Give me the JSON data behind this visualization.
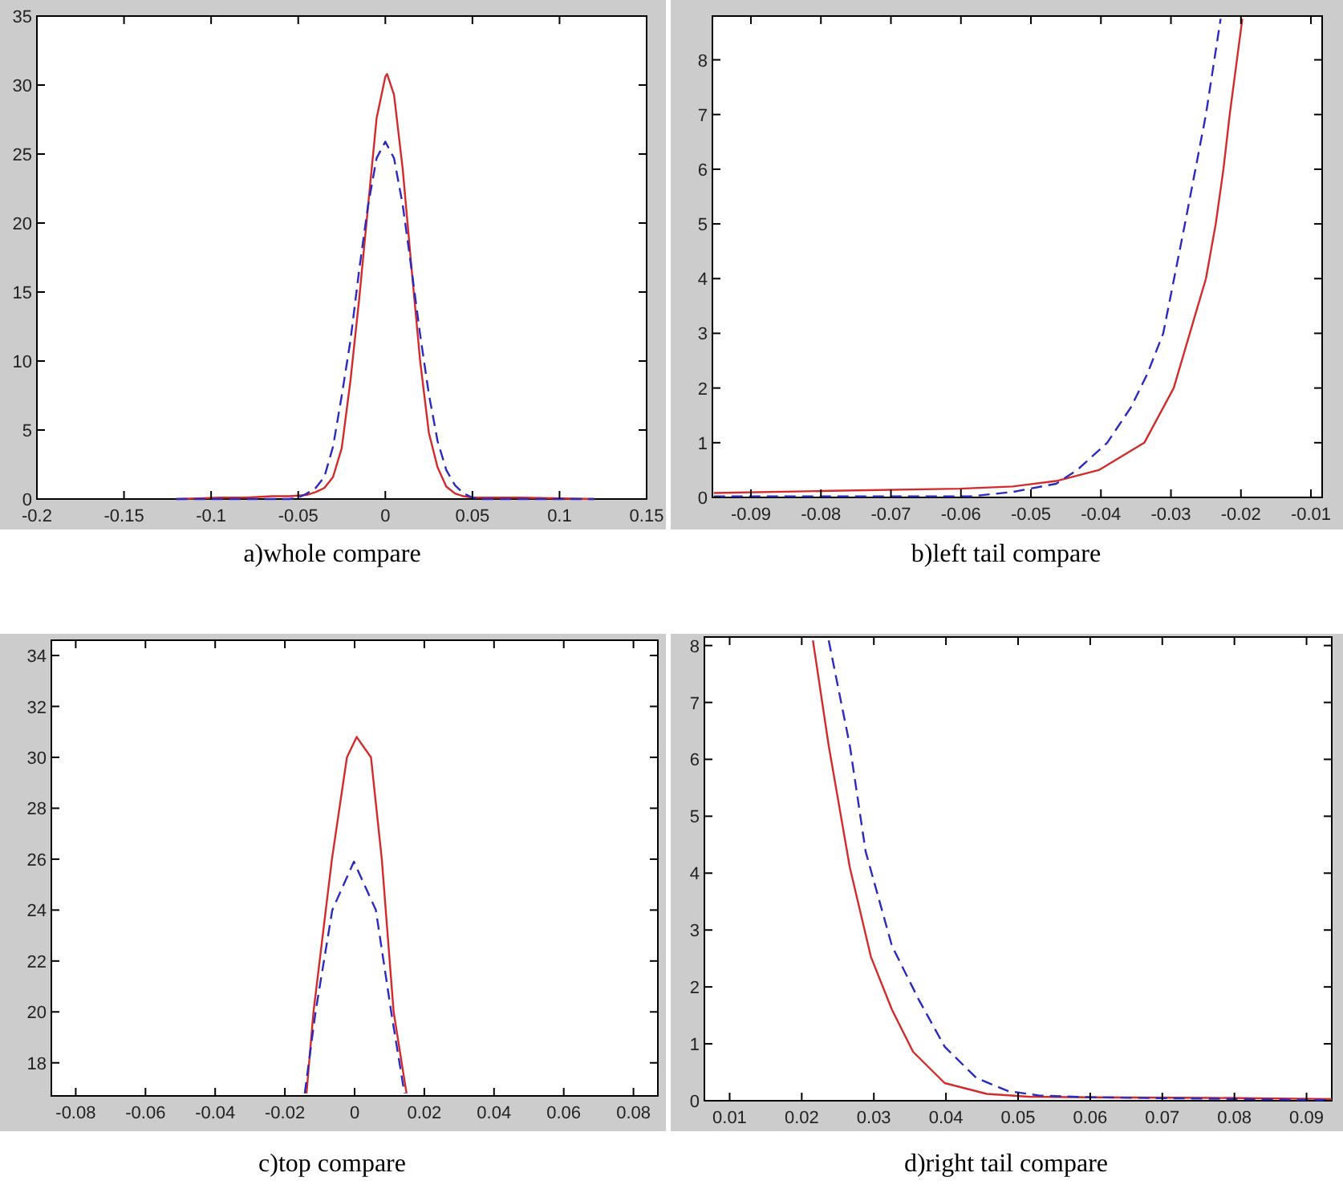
{
  "chart_data": [
    {
      "type": "line",
      "title": "a)whole compare",
      "xlim": [
        -0.2,
        0.15
      ],
      "ylim": [
        0,
        35
      ],
      "xticks": [
        -0.2,
        -0.15,
        -0.1,
        -0.05,
        0,
        0.05,
        0.1,
        0.15
      ],
      "yticks": [
        0,
        5,
        10,
        15,
        20,
        25,
        30,
        35
      ],
      "series": [
        {
          "color": "#d42a2a",
          "line_style": "solid",
          "x": [
            -0.12,
            -0.095,
            -0.08,
            -0.065,
            -0.055,
            -0.045,
            -0.04,
            -0.035,
            -0.03,
            -0.025,
            -0.02,
            -0.015,
            -0.01,
            -0.005,
            0,
            0.001,
            0.005,
            0.01,
            0.015,
            0.02,
            0.025,
            0.03,
            0.035,
            0.04,
            0.045,
            0.05,
            0.06,
            0.077,
            0.12
          ],
          "values": [
            0,
            0.1,
            0.1,
            0.2,
            0.2,
            0.3,
            0.5,
            0.8,
            1.6,
            3.7,
            8.6,
            14.5,
            21.1,
            27.6,
            30.6,
            30.8,
            29.3,
            23.9,
            16.8,
            10,
            4.8,
            2.3,
            0.9,
            0.4,
            0.2,
            0.1,
            0.1,
            0.1,
            0
          ]
        },
        {
          "color": "#2a2ac0",
          "line_style": "dashed",
          "x": [
            -0.12,
            -0.06,
            -0.055,
            -0.05,
            -0.045,
            -0.04,
            -0.035,
            -0.03,
            -0.025,
            -0.02,
            -0.015,
            -0.01,
            -0.005,
            0,
            0.005,
            0.01,
            0.015,
            0.02,
            0.025,
            0.03,
            0.035,
            0.04,
            0.045,
            0.05,
            0.055,
            0.06,
            0.12
          ],
          "values": [
            0,
            0,
            0,
            0.1,
            0.4,
            0.8,
            1.6,
            3.8,
            7.5,
            11.5,
            16.6,
            21.2,
            24.7,
            25.9,
            24.7,
            21.3,
            16.7,
            11.9,
            7.6,
            4.2,
            2.1,
            1,
            0.4,
            0.1,
            0,
            0,
            0
          ]
        }
      ]
    },
    {
      "type": "line",
      "title": "b)left tail compare",
      "xlim": [
        -0.0955,
        -0.0084
      ],
      "ylim": [
        0,
        8.8
      ],
      "xticks": [
        -0.09,
        -0.08,
        -0.07,
        -0.06,
        -0.05,
        -0.04,
        -0.03,
        -0.02,
        -0.01
      ],
      "yticks": [
        0,
        1,
        2,
        3,
        4,
        5,
        6,
        7,
        8
      ],
      "series": [
        {
          "color": "#d42a2a",
          "line_style": "solid",
          "x": [
            -0.0953,
            -0.0785,
            -0.0602,
            -0.0526,
            -0.0464,
            -0.0403,
            -0.0338,
            -0.0296,
            -0.0273,
            -0.025,
            -0.0236,
            -0.0225,
            -0.0216,
            -0.0198
          ],
          "values": [
            0.08,
            0.12,
            0.16,
            0.2,
            0.3,
            0.5,
            1,
            2,
            3,
            4,
            5,
            6,
            7,
            8.75
          ]
        },
        {
          "color": "#2a2ac0",
          "line_style": "dashed",
          "x": [
            -0.0953,
            -0.0586,
            -0.0526,
            -0.0464,
            -0.0434,
            -0.0391,
            -0.0357,
            -0.0334,
            -0.0311,
            -0.028,
            -0.025,
            -0.0229
          ],
          "values": [
            0.02,
            0.02,
            0.1,
            0.25,
            0.5,
            1,
            1.65,
            2.25,
            3,
            5,
            7,
            8.75
          ]
        }
      ]
    },
    {
      "type": "line",
      "title": "c)top compare",
      "xlim": [
        -0.087,
        0.087
      ],
      "ylim": [
        16.7,
        34.6
      ],
      "xticks": [
        -0.08,
        -0.06,
        -0.04,
        -0.02,
        0,
        0.02,
        0.04,
        0.06,
        0.08
      ],
      "yticks": [
        18,
        20,
        22,
        24,
        26,
        28,
        30,
        32,
        34
      ],
      "series": [
        {
          "color": "#d42a2a",
          "line_style": "solid",
          "x": [
            -0.0138,
            -0.0118,
            -0.0065,
            -0.0022,
            0.0006,
            0.0047,
            0.0078,
            0.0112,
            0.0149
          ],
          "values": [
            16.8,
            20,
            26,
            30,
            30.8,
            30,
            26,
            20,
            16.8
          ]
        },
        {
          "color": "#2a2ac0",
          "line_style": "dashed",
          "x": [
            -0.0143,
            -0.0112,
            -0.0064,
            -0.0002,
            0.0061,
            0.0105,
            0.0143
          ],
          "values": [
            16.8,
            20,
            24,
            25.9,
            24,
            20,
            16.8
          ]
        }
      ]
    },
    {
      "type": "line",
      "title": "d)right tail compare",
      "xlim": [
        0.0065,
        0.0935
      ],
      "ylim": [
        0,
        8.15
      ],
      "xticks": [
        0.01,
        0.02,
        0.03,
        0.04,
        0.05,
        0.06,
        0.07,
        0.08,
        0.09
      ],
      "yticks": [
        0,
        1,
        2,
        3,
        4,
        5,
        6,
        7,
        8
      ],
      "series": [
        {
          "color": "#d42a2a",
          "line_style": "solid",
          "x": [
            0.02155,
            0.02374,
            0.02667,
            0.02959,
            0.03251,
            0.03544,
            0.03982,
            0.04567,
            0.05152,
            0.06029,
            0.07711,
            0.0935
          ],
          "values": [
            8.09,
            6.24,
            4.1,
            2.53,
            1.6,
            0.86,
            0.31,
            0.12,
            0.07,
            0.06,
            0.05,
            0.03
          ]
        },
        {
          "color": "#2a2ac0",
          "line_style": "dashed",
          "x": [
            0.02374,
            0.02667,
            0.02886,
            0.03251,
            0.03617,
            0.03982,
            0.04421,
            0.0486,
            0.053,
            0.06029,
            0.0935
          ],
          "values": [
            8.09,
            6.24,
            4.38,
            2.72,
            1.79,
            0.95,
            0.4,
            0.17,
            0.09,
            0.06,
            0.01
          ]
        }
      ]
    }
  ]
}
